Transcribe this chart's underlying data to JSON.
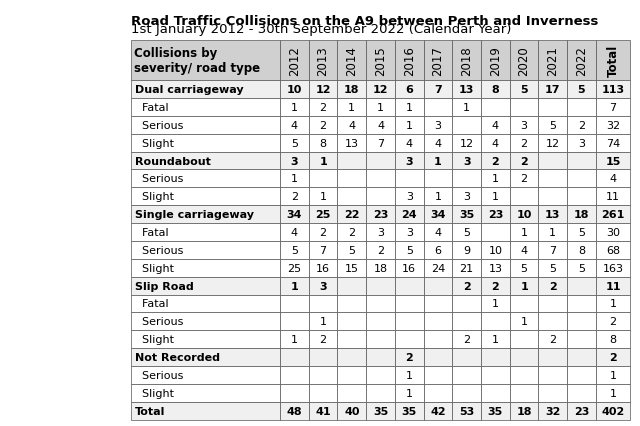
{
  "title_line1": "Road Traffic Collisions on the A9 between Perth and Inverness",
  "title_line2": "1st January 2012 - 30th September 2022 (Calendar Year)",
  "col_header": "Collisions by\nseverity/ road type",
  "year_cols": [
    "2012",
    "2013",
    "2014",
    "2015",
    "2016",
    "2017",
    "2018",
    "2019",
    "2020",
    "2021",
    "2022",
    "Total"
  ],
  "rows": [
    {
      "label": "Dual carriageway",
      "bold": true,
      "values": [
        "10",
        "12",
        "18",
        "12",
        "6",
        "7",
        "13",
        "8",
        "5",
        "17",
        "5",
        "113"
      ]
    },
    {
      "label": "Fatal",
      "bold": false,
      "values": [
        "1",
        "2",
        "1",
        "1",
        "1",
        "",
        "1",
        "",
        "",
        "",
        "",
        "7"
      ]
    },
    {
      "label": "Serious",
      "bold": false,
      "values": [
        "4",
        "2",
        "4",
        "4",
        "1",
        "3",
        "",
        "4",
        "3",
        "5",
        "2",
        "32"
      ]
    },
    {
      "label": "Slight",
      "bold": false,
      "values": [
        "5",
        "8",
        "13",
        "7",
        "4",
        "4",
        "12",
        "4",
        "2",
        "12",
        "3",
        "74"
      ]
    },
    {
      "label": "Roundabout",
      "bold": true,
      "values": [
        "3",
        "1",
        "",
        "",
        "3",
        "1",
        "3",
        "2",
        "2",
        "",
        "",
        "15"
      ]
    },
    {
      "label": "Serious",
      "bold": false,
      "values": [
        "1",
        "",
        "",
        "",
        "",
        "",
        "",
        "1",
        "2",
        "",
        "",
        "4"
      ]
    },
    {
      "label": "Slight",
      "bold": false,
      "values": [
        "2",
        "1",
        "",
        "",
        "3",
        "1",
        "3",
        "1",
        "",
        "",
        "",
        "11"
      ]
    },
    {
      "label": "Single carriageway",
      "bold": true,
      "values": [
        "34",
        "25",
        "22",
        "23",
        "24",
        "34",
        "35",
        "23",
        "10",
        "13",
        "18",
        "261"
      ]
    },
    {
      "label": "Fatal",
      "bold": false,
      "values": [
        "4",
        "2",
        "2",
        "3",
        "3",
        "4",
        "5",
        "",
        "1",
        "1",
        "5",
        "30"
      ]
    },
    {
      "label": "Serious",
      "bold": false,
      "values": [
        "5",
        "7",
        "5",
        "2",
        "5",
        "6",
        "9",
        "10",
        "4",
        "7",
        "8",
        "68"
      ]
    },
    {
      "label": "Slight",
      "bold": false,
      "values": [
        "25",
        "16",
        "15",
        "18",
        "16",
        "24",
        "21",
        "13",
        "5",
        "5",
        "5",
        "163"
      ]
    },
    {
      "label": "Slip Road",
      "bold": true,
      "values": [
        "1",
        "3",
        "",
        "",
        "",
        "",
        "2",
        "2",
        "1",
        "2",
        "",
        "11"
      ]
    },
    {
      "label": "Fatal",
      "bold": false,
      "values": [
        "",
        "",
        "",
        "",
        "",
        "",
        "",
        "1",
        "",
        "",
        "",
        "1"
      ]
    },
    {
      "label": "Serious",
      "bold": false,
      "values": [
        "",
        "1",
        "",
        "",
        "",
        "",
        "",
        "",
        "1",
        "",
        "",
        "2"
      ]
    },
    {
      "label": "Slight",
      "bold": false,
      "values": [
        "1",
        "2",
        "",
        "",
        "",
        "",
        "2",
        "1",
        "",
        "2",
        "",
        "8"
      ]
    },
    {
      "label": "Not Recorded",
      "bold": true,
      "values": [
        "",
        "",
        "",
        "",
        "2",
        "",
        "",
        "",
        "",
        "",
        "",
        "2"
      ]
    },
    {
      "label": "Serious",
      "bold": false,
      "values": [
        "",
        "",
        "",
        "",
        "1",
        "",
        "",
        "",
        "",
        "",
        "",
        "1"
      ]
    },
    {
      "label": "Slight",
      "bold": false,
      "values": [
        "",
        "",
        "",
        "",
        "1",
        "",
        "",
        "",
        "",
        "",
        "",
        "1"
      ]
    },
    {
      "label": "Total",
      "bold": true,
      "values": [
        "48",
        "41",
        "40",
        "35",
        "35",
        "42",
        "53",
        "35",
        "18",
        "32",
        "23",
        "402"
      ]
    }
  ],
  "header_bg": "#d0d0d0",
  "bold_row_bg": "#f0f0f0",
  "normal_row_bg": "#ffffff",
  "total_row_bg": "#f0f0f0",
  "border_color": "#555555",
  "text_color": "#000000",
  "title_fontsize": 9.5,
  "header_fontsize": 8.5,
  "cell_fontsize": 8.0
}
